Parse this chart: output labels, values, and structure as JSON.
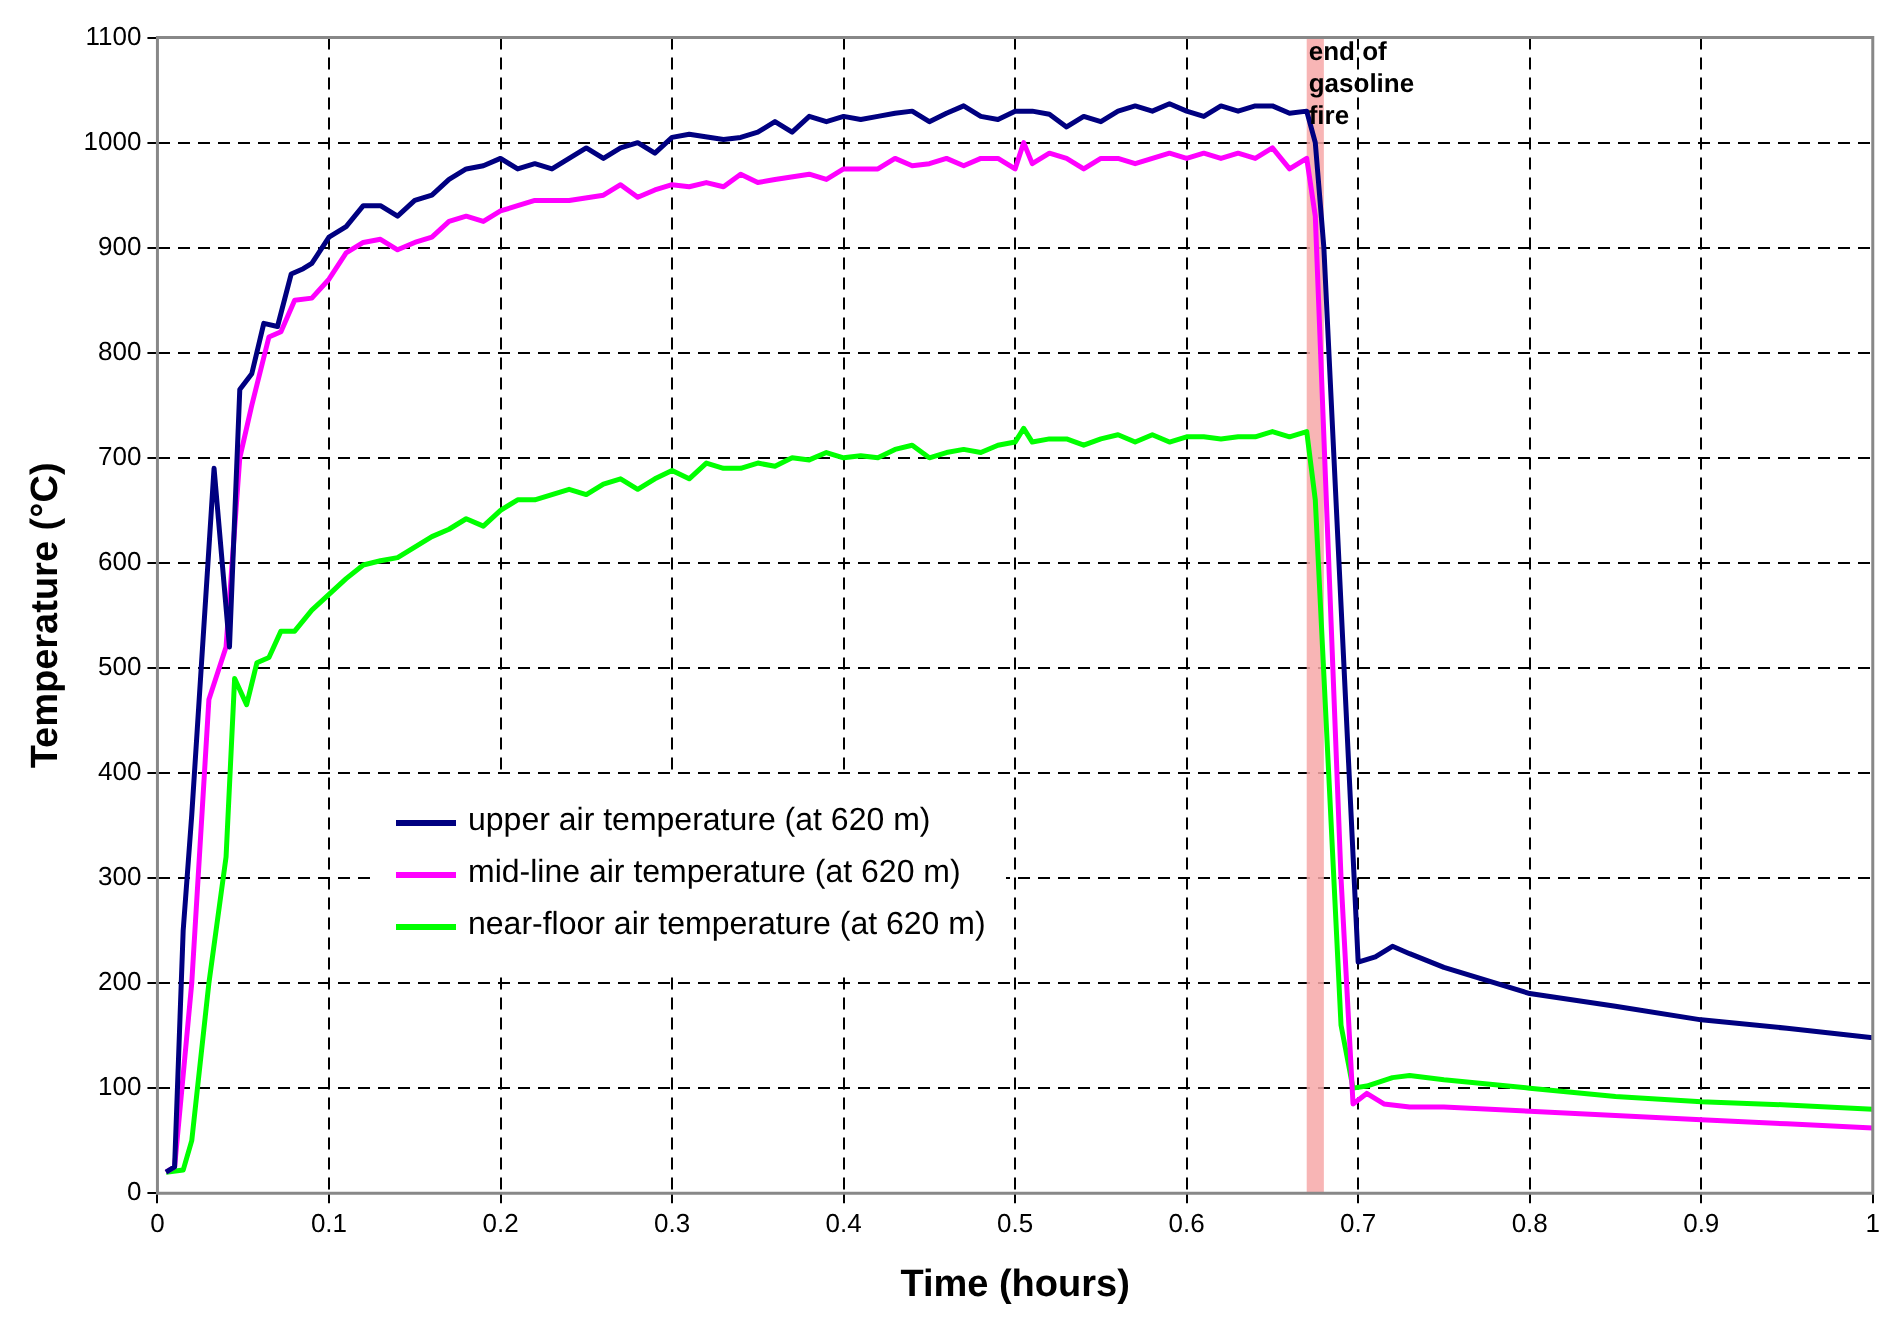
{
  "chart_data": {
    "type": "line",
    "xlabel": "Time (hours)",
    "ylabel": "Temperature (°C)",
    "xlim": [
      0,
      1
    ],
    "xticks": [
      0,
      0.1,
      0.2,
      0.3,
      0.4,
      0.5,
      0.6,
      0.7,
      0.8,
      0.9,
      1
    ],
    "ylim": [
      0,
      1100
    ],
    "yticks": [
      0,
      100,
      200,
      300,
      400,
      500,
      600,
      700,
      800,
      900,
      1000,
      1100
    ],
    "grid": true,
    "legend": "bottom left",
    "marker": "none",
    "line_style": "solid",
    "bands": [
      {
        "axis": "x",
        "from": 0.67,
        "to": 0.68,
        "label": "end of gasoline fire",
        "color": "#f7a8a8"
      }
    ],
    "series": [
      {
        "name": "upper air temperature (at 620 m)",
        "color": "#000080",
        "x": [
          0.005,
          0.01,
          0.015,
          0.02,
          0.033,
          0.042,
          0.048,
          0.055,
          0.062,
          0.07,
          0.078,
          0.085,
          0.09,
          0.1,
          0.11,
          0.12,
          0.13,
          0.14,
          0.15,
          0.16,
          0.17,
          0.18,
          0.19,
          0.2,
          0.21,
          0.22,
          0.23,
          0.24,
          0.25,
          0.26,
          0.27,
          0.28,
          0.29,
          0.3,
          0.31,
          0.33,
          0.34,
          0.35,
          0.36,
          0.37,
          0.38,
          0.39,
          0.4,
          0.41,
          0.42,
          0.43,
          0.44,
          0.45,
          0.46,
          0.47,
          0.48,
          0.49,
          0.5,
          0.51,
          0.52,
          0.53,
          0.54,
          0.55,
          0.56,
          0.57,
          0.58,
          0.59,
          0.6,
          0.61,
          0.62,
          0.63,
          0.64,
          0.65,
          0.66,
          0.67,
          0.675,
          0.68,
          0.7,
          0.71,
          0.72,
          0.73,
          0.75,
          0.8,
          0.85,
          0.9,
          0.95,
          1
        ],
        "values": [
          20,
          25,
          250,
          360,
          690,
          520,
          765,
          780,
          828,
          825,
          875,
          880,
          885,
          910,
          920,
          940,
          940,
          930,
          945,
          950,
          965,
          975,
          978,
          985,
          975,
          980,
          975,
          985,
          995,
          985,
          995,
          1000,
          990,
          1005,
          1008,
          1003,
          1005,
          1010,
          1020,
          1010,
          1025,
          1020,
          1025,
          1022,
          1025,
          1028,
          1030,
          1020,
          1028,
          1035,
          1025,
          1022,
          1030,
          1030,
          1027,
          1015,
          1025,
          1020,
          1030,
          1035,
          1030,
          1037,
          1030,
          1025,
          1035,
          1030,
          1035,
          1035,
          1028,
          1030,
          1000,
          900,
          220,
          225,
          235,
          228,
          215,
          190,
          178,
          165,
          157,
          148
        ]
      },
      {
        "name": "mid-line air temperature (at 620 m)",
        "color": "#ff00ff",
        "x": [
          0.005,
          0.01,
          0.02,
          0.03,
          0.04,
          0.048,
          0.055,
          0.065,
          0.072,
          0.08,
          0.09,
          0.1,
          0.11,
          0.12,
          0.13,
          0.14,
          0.15,
          0.16,
          0.17,
          0.18,
          0.19,
          0.2,
          0.21,
          0.22,
          0.24,
          0.26,
          0.27,
          0.28,
          0.29,
          0.3,
          0.31,
          0.32,
          0.33,
          0.34,
          0.35,
          0.36,
          0.38,
          0.39,
          0.4,
          0.42,
          0.43,
          0.44,
          0.45,
          0.46,
          0.47,
          0.48,
          0.49,
          0.5,
          0.505,
          0.51,
          0.52,
          0.53,
          0.54,
          0.55,
          0.56,
          0.57,
          0.58,
          0.59,
          0.6,
          0.61,
          0.62,
          0.63,
          0.64,
          0.65,
          0.66,
          0.67,
          0.675,
          0.69,
          0.697,
          0.705,
          0.715,
          0.73,
          0.75,
          0.8,
          0.85,
          0.9,
          0.95,
          1
        ],
        "values": [
          20,
          25,
          200,
          470,
          520,
          700,
          750,
          815,
          820,
          850,
          852,
          870,
          895,
          905,
          908,
          898,
          905,
          910,
          925,
          930,
          925,
          935,
          940,
          945,
          945,
          950,
          960,
          948,
          955,
          960,
          958,
          962,
          958,
          970,
          962,
          965,
          970,
          965,
          975,
          975,
          985,
          978,
          980,
          985,
          978,
          985,
          985,
          975,
          1000,
          980,
          990,
          985,
          975,
          985,
          985,
          980,
          985,
          990,
          985,
          990,
          985,
          990,
          985,
          995,
          975,
          985,
          930,
          300,
          85,
          95,
          85,
          82,
          82,
          78,
          74,
          70,
          66,
          62
        ]
      },
      {
        "name": "near-floor air temperature (at 620 m)",
        "color": "#00ff00",
        "x": [
          0.005,
          0.015,
          0.02,
          0.03,
          0.04,
          0.045,
          0.052,
          0.058,
          0.065,
          0.072,
          0.08,
          0.09,
          0.1,
          0.11,
          0.12,
          0.13,
          0.14,
          0.15,
          0.16,
          0.17,
          0.18,
          0.19,
          0.2,
          0.21,
          0.22,
          0.23,
          0.24,
          0.25,
          0.26,
          0.27,
          0.28,
          0.29,
          0.3,
          0.31,
          0.32,
          0.33,
          0.34,
          0.35,
          0.36,
          0.37,
          0.38,
          0.39,
          0.4,
          0.41,
          0.42,
          0.43,
          0.44,
          0.45,
          0.46,
          0.47,
          0.48,
          0.49,
          0.5,
          0.505,
          0.51,
          0.52,
          0.53,
          0.54,
          0.55,
          0.56,
          0.57,
          0.58,
          0.59,
          0.6,
          0.61,
          0.62,
          0.63,
          0.64,
          0.65,
          0.66,
          0.67,
          0.675,
          0.69,
          0.697,
          0.705,
          0.72,
          0.73,
          0.75,
          0.8,
          0.85,
          0.9,
          0.95,
          1
        ],
        "values": [
          20,
          22,
          50,
          200,
          320,
          490,
          465,
          505,
          510,
          535,
          535,
          555,
          570,
          585,
          598,
          602,
          605,
          615,
          625,
          632,
          642,
          635,
          650,
          660,
          660,
          665,
          670,
          665,
          675,
          680,
          670,
          680,
          688,
          680,
          695,
          690,
          690,
          695,
          692,
          700,
          698,
          705,
          700,
          702,
          700,
          708,
          712,
          700,
          705,
          708,
          705,
          712,
          715,
          728,
          715,
          718,
          718,
          712,
          718,
          722,
          715,
          722,
          715,
          720,
          720,
          718,
          720,
          720,
          725,
          720,
          725,
          660,
          160,
          100,
          102,
          110,
          112,
          108,
          100,
          92,
          87,
          84,
          80
        ]
      }
    ]
  }
}
